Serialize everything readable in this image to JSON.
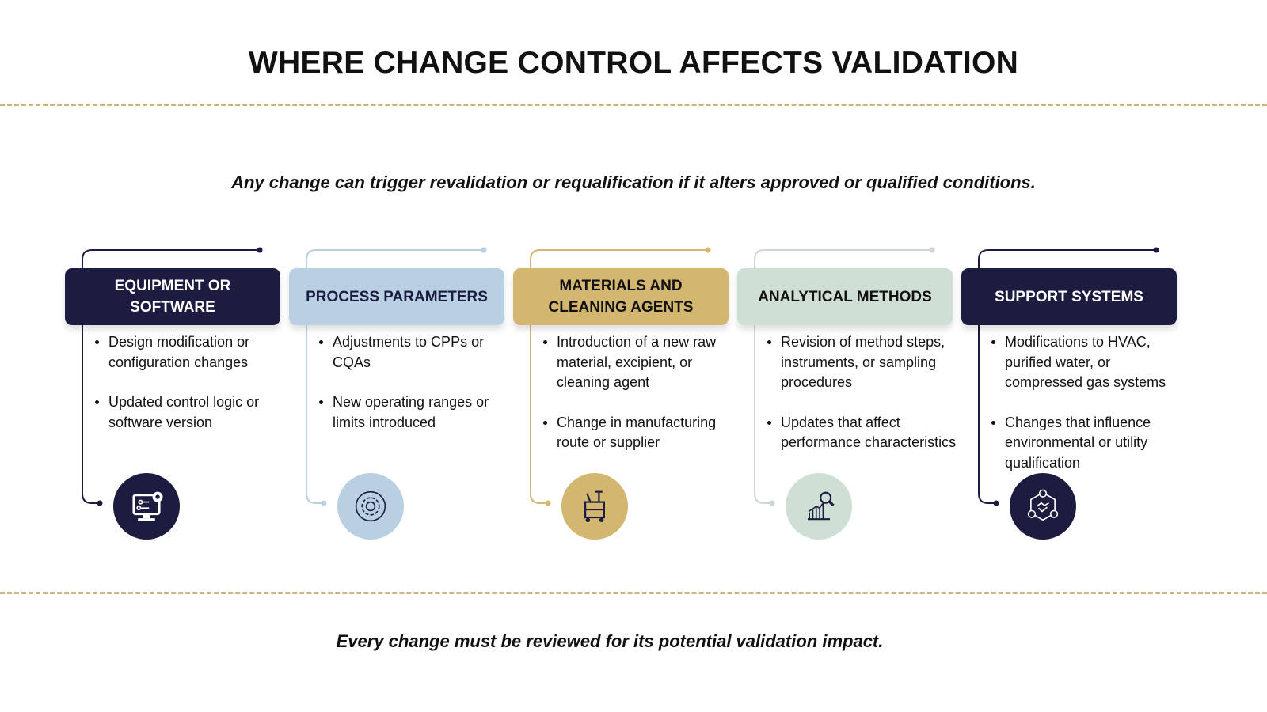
{
  "title": "WHERE CHANGE CONTROL AFFECTS VALIDATION",
  "subtitle": "Any change can trigger revalidation or requalification if it alters approved or qualified conditions.",
  "footer": "Every change must be reviewed for its potential validation impact.",
  "colors": {
    "navy": "#1c1b40",
    "light_blue": "#b9d0e3",
    "gold": "#d3b670",
    "sage": "#cfdfd4",
    "dash": "#c9b27a"
  },
  "categories": [
    {
      "title": "EQUIPMENT OR SOFTWARE",
      "bg": "#1c1b40",
      "fg": "#ffffff",
      "line": "#1c1b40",
      "icon": "computer-gear-icon",
      "bullets": [
        "Design modification or configuration changes",
        "Updated control logic or software version"
      ]
    },
    {
      "title": "PROCESS PARAMETERS",
      "bg": "#b9d0e3",
      "fg": "#1c1b40",
      "line": "#b9d0e3",
      "icon": "gear-icon",
      "bullets": [
        "Adjustments to CPPs or CQAs",
        "New operating ranges or limits introduced"
      ]
    },
    {
      "title": "MATERIALS AND CLEANING AGENTS",
      "bg": "#d3b670",
      "fg": "#111111",
      "line": "#d3b670",
      "icon": "cleaning-cart-icon",
      "bullets": [
        "Introduction of a new raw material, excipient, or cleaning agent",
        "Change in manufacturing route or supplier"
      ]
    },
    {
      "title": "ANALYTICAL METHODS",
      "bg": "#cfdfd4",
      "fg": "#111111",
      "line": "#cfd6d6",
      "icon": "chart-magnifier-icon",
      "bullets": [
        "Revision of method steps, instruments, or sampling procedures",
        "Updates that affect performance characteristics"
      ]
    },
    {
      "title": "SUPPORT SYSTEMS",
      "bg": "#1c1b40",
      "fg": "#ffffff",
      "line": "#1c1b40",
      "icon": "network-handshake-icon",
      "bullets": [
        "Modifications to HVAC, purified water, or compressed gas systems",
        "Changes that influence environmental or utility qualification"
      ]
    }
  ]
}
